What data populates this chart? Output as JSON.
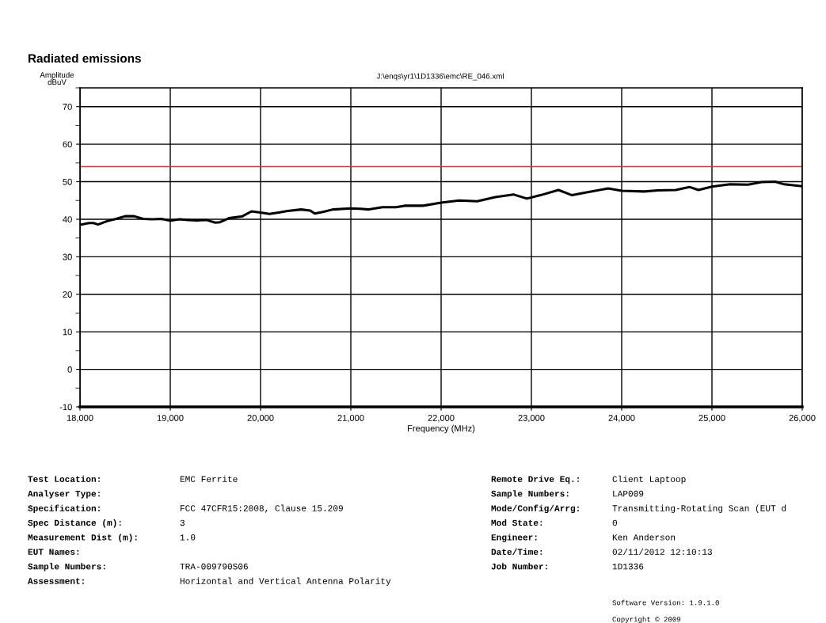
{
  "chart_data": {
    "type": "line",
    "title": "Radiated emissions",
    "subtitle": "J:\\enqs\\yr1\\1D1336\\emc\\RE_046.xml",
    "xlabel": "Frequency (MHz)",
    "ylabel": "Amplitude\ndBuV",
    "xlim": [
      18000,
      26000
    ],
    "xticks": [
      {
        "value": 18000,
        "label": "18,000"
      },
      {
        "value": 19000,
        "label": "19,000"
      },
      {
        "value": 20000,
        "label": "20,000"
      },
      {
        "value": 21000,
        "label": "21,000"
      },
      {
        "value": 22000,
        "label": "22,000"
      },
      {
        "value": 23000,
        "label": "23,000"
      },
      {
        "value": 24000,
        "label": "24,000"
      },
      {
        "value": 25000,
        "label": "25,000"
      },
      {
        "value": 26000,
        "label": "26,000"
      }
    ],
    "ylim": [
      -10,
      75
    ],
    "yticks": [
      -10,
      0,
      10,
      20,
      30,
      40,
      50,
      60,
      70
    ],
    "grid": true,
    "legend": false,
    "marker": "none",
    "line_style": "solid",
    "ref_lines": [
      {
        "axis": "y",
        "value": 54,
        "label": null,
        "color": "#e03030",
        "line_style": "solid"
      }
    ],
    "series": [
      {
        "color": "#000000",
        "x": [
          18000,
          18100,
          18150,
          18200,
          18300,
          18400,
          18500,
          18600,
          18700,
          18800,
          18900,
          19000,
          19100,
          19200,
          19300,
          19400,
          19500,
          19550,
          19650,
          19800,
          19900,
          20000,
          20100,
          20200,
          20300,
          20450,
          20550,
          20600,
          20700,
          20800,
          21000,
          21100,
          21200,
          21350,
          21500,
          21600,
          21800,
          22000,
          22200,
          22400,
          22600,
          22800,
          22950,
          23100,
          23300,
          23450,
          23600,
          23850,
          24000,
          24250,
          24400,
          24600,
          24750,
          24850,
          25000,
          25200,
          25400,
          25550,
          25700,
          25800,
          26000
        ],
        "values": [
          38.5,
          39,
          39,
          38.6,
          39.5,
          40.1,
          40.8,
          40.8,
          40.1,
          40,
          40.1,
          39.6,
          40,
          39.8,
          39.7,
          39.8,
          39.1,
          39.2,
          40.3,
          40.8,
          42.1,
          41.8,
          41.4,
          41.8,
          42.2,
          42.6,
          42.3,
          41.5,
          42,
          42.6,
          42.9,
          42.8,
          42.6,
          43.2,
          43.2,
          43.6,
          43.6,
          44.4,
          45,
          44.8,
          45.9,
          46.6,
          45.5,
          46.4,
          47.8,
          46.4,
          47.1,
          48.2,
          47.6,
          47.4,
          47.7,
          47.8,
          48.6,
          47.8,
          48.7,
          49.3,
          49.2,
          49.9,
          50,
          49.3,
          48.8
        ]
      }
    ],
    "annotations": [
      "Test Location:\tEMC Ferrite",
      "Analyser Type:",
      "Specification:\tFCC 47CFR15:2008, Clause 15.209",
      "Spec Distance (m):\t3",
      "Measurement Dist (m):\t1.0",
      "EUT Names:",
      "Sample Numbers:\tTRA-009790S06",
      "Assessment:\tHorizontal and Vertical Antenna Polarity",
      "Remote Drive Eq.:\tClient Laptoop",
      "Sample Numbers:\tLAP009",
      "Mode/Config/Arrg:\tTransmitting-Rotating Scan (EUT d",
      "Mod State:\t0",
      "Engineer:\tKen Anderson",
      "Date/Time:\t02/11/2012 12:10:13",
      "Job Number:\t1D1336",
      "Software Version: 1.9.1.0",
      "Copyright © 2009"
    ]
  }
}
